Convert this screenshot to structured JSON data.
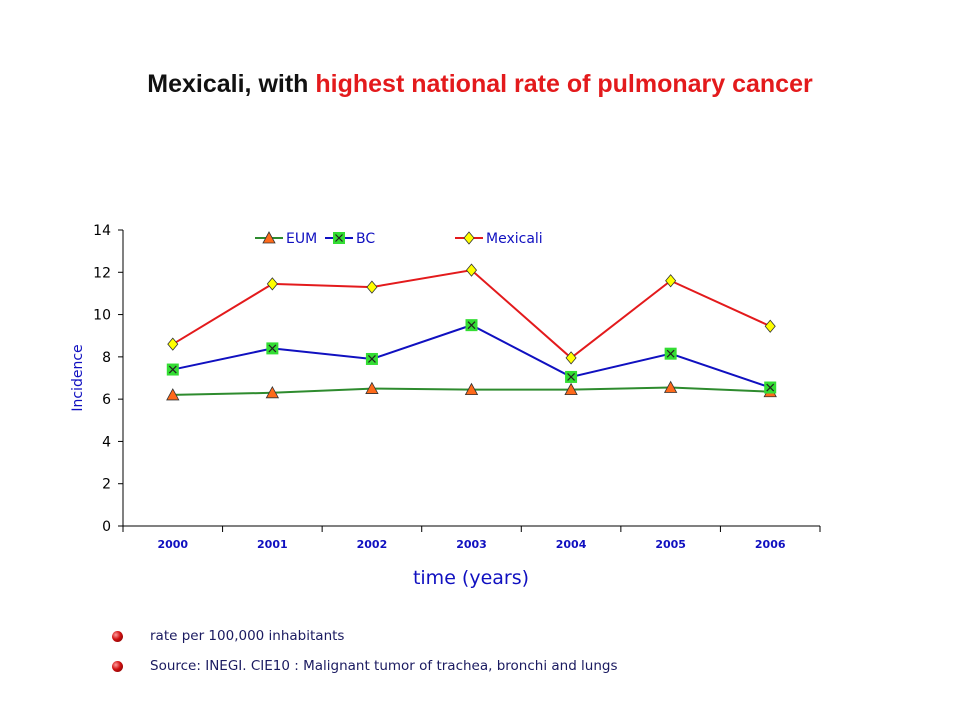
{
  "title": {
    "part1": "Mexicali, with ",
    "part2": "highest national rate of pulmonary cancer",
    "part2_color": "#e31a1c"
  },
  "chart_data": {
    "type": "line",
    "categories": [
      "2000",
      "2001",
      "2002",
      "2003",
      "2004",
      "2005",
      "2006"
    ],
    "series": [
      {
        "name": "EUM",
        "values": [
          6.2,
          6.3,
          6.5,
          6.45,
          6.45,
          6.55,
          6.35
        ],
        "line_color": "#2e8b2e",
        "marker": "triangle",
        "marker_color": "#ff6a1a"
      },
      {
        "name": "BC",
        "values": [
          7.4,
          8.4,
          7.9,
          9.5,
          7.05,
          8.15,
          6.55
        ],
        "line_color": "#1010c0",
        "marker": "x-square",
        "marker_color": "#33dd33"
      },
      {
        "name": "Mexicali",
        "values": [
          8.6,
          11.45,
          11.3,
          12.1,
          7.95,
          11.6,
          9.45
        ],
        "line_color": "#e31a1c",
        "marker": "diamond",
        "marker_color": "#ffff00"
      }
    ],
    "xlabel": "time (years)",
    "ylabel": "Incidence",
    "ylim": [
      0,
      14
    ],
    "yticks": [
      "0",
      "2",
      "4",
      "6",
      "8",
      "10",
      "12",
      "14"
    ],
    "grid": false,
    "legend_position": "top"
  },
  "notes": [
    "rate per 100,000 inhabitants",
    "Source: INEGI. CIE10 : Malignant tumor of trachea, bronchi and lungs"
  ]
}
